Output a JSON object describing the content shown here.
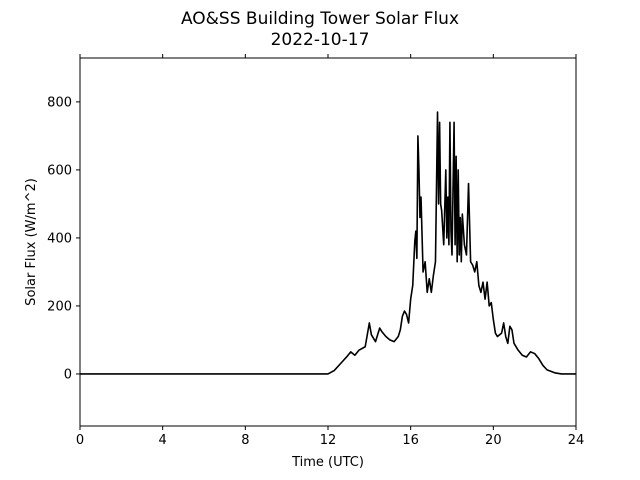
{
  "chart_data": {
    "type": "line",
    "title": "AO&SS Building Tower Solar Flux",
    "subtitle": "2022-10-17",
    "x_label": "Time (UTC)",
    "y_label": "Solar Flux (W/m^2)",
    "xlim": [
      0,
      24
    ],
    "xticks": [
      0,
      4,
      8,
      12,
      16,
      20,
      24
    ],
    "ylim": [
      -153,
      929
    ],
    "yticks": [
      0,
      200,
      400,
      600,
      800
    ],
    "x": [
      0,
      12,
      12.3,
      12.6,
      12.9,
      13.1,
      13.3,
      13.5,
      13.8,
      14.0,
      14.1,
      14.3,
      14.5,
      14.6,
      14.8,
      15.0,
      15.2,
      15.4,
      15.5,
      15.6,
      15.7,
      15.8,
      15.9,
      16.0,
      16.1,
      16.2,
      16.25,
      16.3,
      16.35,
      16.4,
      16.45,
      16.5,
      16.6,
      16.7,
      16.8,
      16.9,
      17.0,
      17.1,
      17.2,
      17.3,
      17.35,
      17.4,
      17.45,
      17.5,
      17.6,
      17.7,
      17.75,
      17.8,
      17.85,
      17.9,
      17.95,
      18.0,
      18.1,
      18.15,
      18.2,
      18.25,
      18.3,
      18.35,
      18.4,
      18.45,
      18.5,
      18.6,
      18.7,
      18.8,
      18.9,
      19.0,
      19.1,
      19.2,
      19.3,
      19.4,
      19.5,
      19.6,
      19.7,
      19.8,
      19.9,
      20.0,
      20.1,
      20.2,
      20.4,
      20.5,
      20.6,
      20.7,
      20.8,
      20.9,
      21.0,
      21.2,
      21.4,
      21.6,
      21.8,
      22.0,
      22.2,
      22.4,
      22.6,
      23.0,
      23.3,
      24
    ],
    "series": [
      {
        "name": "Solar Flux",
        "color": "#000000",
        "values": [
          0,
          0,
          10,
          30,
          50,
          65,
          55,
          70,
          80,
          150,
          115,
          95,
          135,
          125,
          110,
          100,
          95,
          110,
          130,
          170,
          185,
          175,
          150,
          220,
          260,
          390,
          420,
          340,
          700,
          600,
          460,
          520,
          300,
          330,
          240,
          280,
          240,
          290,
          330,
          770,
          500,
          740,
          500,
          480,
          380,
          600,
          400,
          520,
          380,
          740,
          420,
          350,
          740,
          380,
          640,
          330,
          600,
          350,
          460,
          330,
          470,
          380,
          350,
          560,
          330,
          320,
          300,
          330,
          260,
          240,
          270,
          220,
          270,
          200,
          210,
          160,
          120,
          110,
          120,
          150,
          110,
          90,
          140,
          130,
          90,
          70,
          55,
          50,
          65,
          60,
          45,
          25,
          12,
          3,
          0,
          0
        ]
      }
    ]
  }
}
